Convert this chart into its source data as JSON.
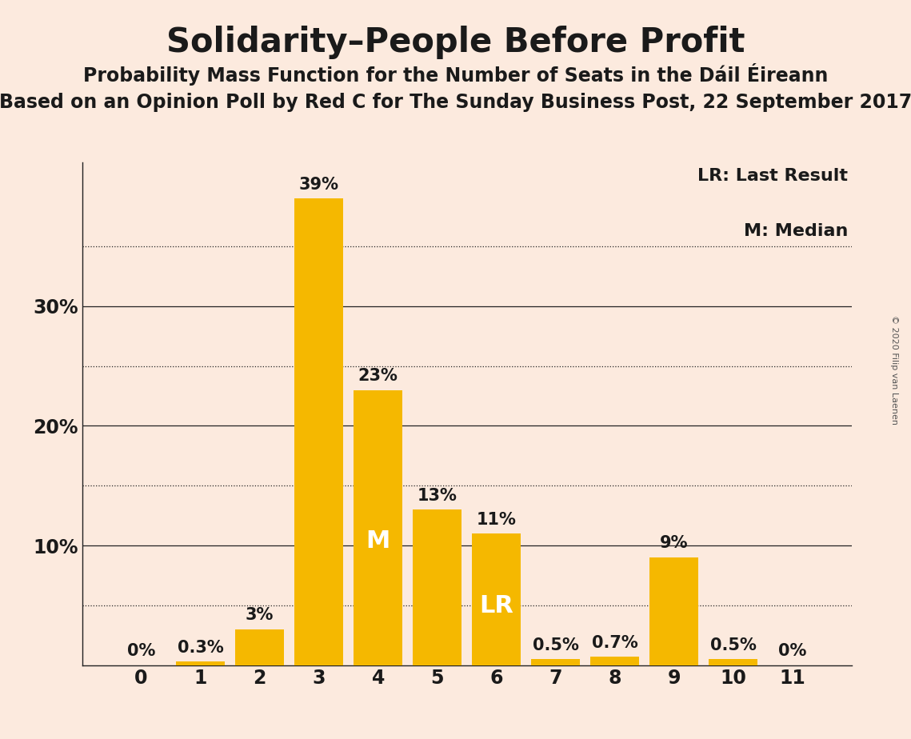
{
  "title": "Solidarity–People Before Profit",
  "subtitle1": "Probability Mass Function for the Number of Seats in the Dáil Éireann",
  "subtitle2": "Based on an Opinion Poll by Red C for The Sunday Business Post, 22 September 2017",
  "copyright": "© 2020 Filip van Laenen",
  "categories": [
    0,
    1,
    2,
    3,
    4,
    5,
    6,
    7,
    8,
    9,
    10,
    11
  ],
  "values": [
    0.0,
    0.3,
    3.0,
    39.0,
    23.0,
    13.0,
    11.0,
    0.5,
    0.7,
    9.0,
    0.5,
    0.0
  ],
  "bar_color": "#F5B800",
  "background_color": "#FCEADE",
  "text_color": "#1a1a1a",
  "ylim_max": 42,
  "solid_gridlines": [
    10,
    20,
    30
  ],
  "dotted_gridlines": [
    5,
    15,
    25,
    35
  ],
  "bar_labels": [
    "0%",
    "0.3%",
    "3%",
    "39%",
    "23%",
    "13%",
    "11%",
    "0.5%",
    "0.7%",
    "9%",
    "0.5%",
    "0%"
  ],
  "median_bar_idx": 4,
  "lr_bar_idx": 6,
  "median_label": "M",
  "lr_label": "LR",
  "legend_lr": "LR: Last Result",
  "legend_m": "M: Median",
  "title_fontsize": 30,
  "subtitle1_fontsize": 17,
  "subtitle2_fontsize": 17,
  "bar_label_fontsize": 15,
  "tick_label_fontsize": 17,
  "inside_label_fontsize": 22,
  "legend_fontsize": 16,
  "copyright_fontsize": 8
}
